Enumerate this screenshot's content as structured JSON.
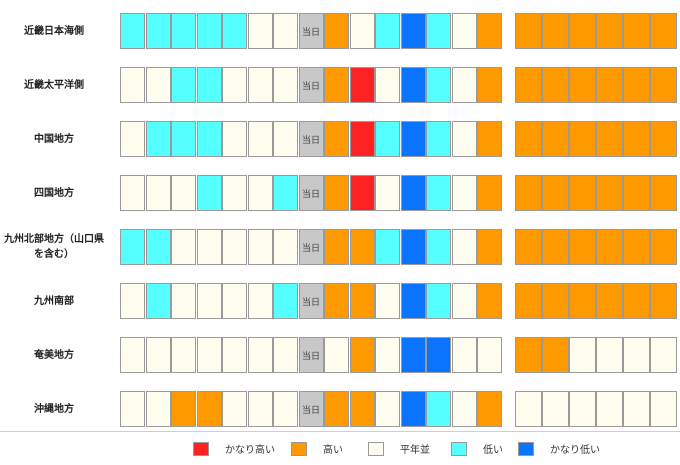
{
  "colors": {
    "H2": "#ff2222",
    "H": "#ff9900",
    "N": "#fffdf0",
    "L": "#55ffff",
    "L2": "#0a74ff",
    "T": "#c8c8c8"
  },
  "today_label": "当日",
  "rows": [
    {
      "name": "近畿日本海側",
      "left": [
        "L",
        "L",
        "L",
        "L",
        "L",
        "N",
        "N",
        "T",
        "H",
        "N",
        "L",
        "L2",
        "L",
        "N",
        "H"
      ],
      "right": [
        "H",
        "H",
        "H",
        "H",
        "H",
        "H"
      ]
    },
    {
      "name": "近畿太平洋側",
      "left": [
        "N",
        "N",
        "L",
        "L",
        "N",
        "N",
        "N",
        "T",
        "H",
        "H2",
        "N",
        "L2",
        "L",
        "N",
        "H"
      ],
      "right": [
        "H",
        "H",
        "H",
        "H",
        "H",
        "H"
      ]
    },
    {
      "name": "中国地方",
      "left": [
        "N",
        "L",
        "L",
        "L",
        "N",
        "N",
        "N",
        "T",
        "H",
        "H2",
        "L",
        "L2",
        "L",
        "N",
        "H"
      ],
      "right": [
        "H",
        "H",
        "H",
        "H",
        "H",
        "H"
      ]
    },
    {
      "name": "四国地方",
      "left": [
        "N",
        "N",
        "N",
        "L",
        "N",
        "N",
        "L",
        "T",
        "H",
        "H2",
        "N",
        "L2",
        "L",
        "N",
        "H"
      ],
      "right": [
        "H",
        "H",
        "H",
        "H",
        "H",
        "H"
      ]
    },
    {
      "name": "九州北部地方（山口県を含む）",
      "left": [
        "L",
        "L",
        "N",
        "N",
        "N",
        "N",
        "N",
        "T",
        "H",
        "H",
        "L",
        "L2",
        "L",
        "N",
        "H"
      ],
      "right": [
        "H",
        "H",
        "H",
        "H",
        "H",
        "H"
      ]
    },
    {
      "name": "九州南部",
      "left": [
        "N",
        "L",
        "N",
        "N",
        "N",
        "N",
        "L",
        "T",
        "H",
        "H",
        "N",
        "L2",
        "L",
        "N",
        "H"
      ],
      "right": [
        "H",
        "H",
        "H",
        "H",
        "H",
        "H"
      ]
    },
    {
      "name": "奄美地方",
      "left": [
        "N",
        "N",
        "N",
        "N",
        "N",
        "N",
        "N",
        "T",
        "N",
        "H",
        "N",
        "L2",
        "L2",
        "N",
        "N"
      ],
      "right": [
        "H",
        "H",
        "N",
        "N",
        "N",
        "N"
      ]
    },
    {
      "name": "沖縄地方",
      "left": [
        "N",
        "N",
        "H",
        "H",
        "N",
        "N",
        "N",
        "T",
        "H",
        "H",
        "N",
        "L2",
        "L",
        "N",
        "H"
      ],
      "right": [
        "N",
        "N",
        "N",
        "N",
        "N",
        "N"
      ]
    }
  ],
  "legend": [
    {
      "key": "H2",
      "label": "かなり高い"
    },
    {
      "key": "H",
      "label": "高い"
    },
    {
      "key": "N",
      "label": "平年並"
    },
    {
      "key": "L",
      "label": "低い"
    },
    {
      "key": "L2",
      "label": "かなり低い"
    }
  ]
}
